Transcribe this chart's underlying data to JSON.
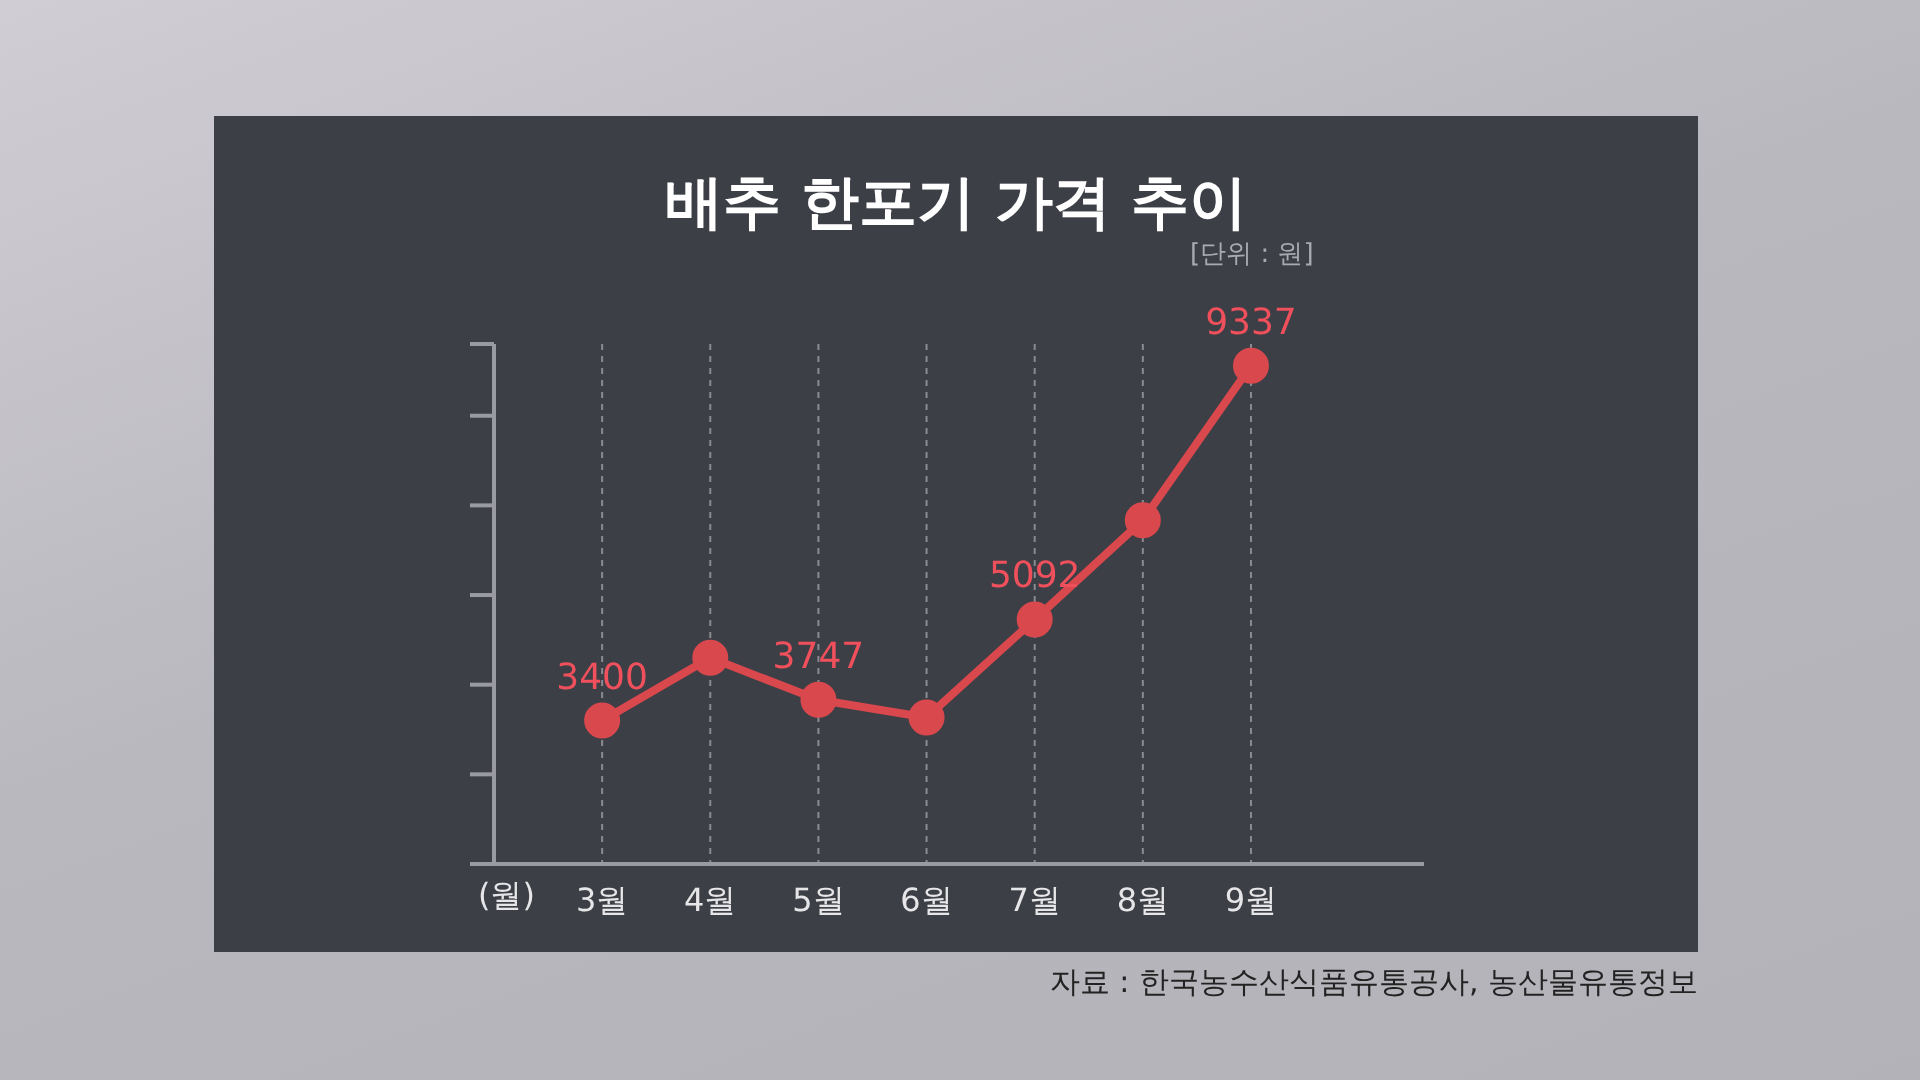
{
  "chart_data": {
    "type": "line",
    "title": "배추 한포기 가격 추이",
    "subtitle": "[단위 : 원]",
    "xlabel": "(월)",
    "categories": [
      "3월",
      "4월",
      "5월",
      "6월",
      "7월",
      "8월",
      "9월"
    ],
    "series": [
      {
        "color": "#d9484d",
        "values": [
          3400,
          4450,
          3747,
          3450,
          5092,
          6750,
          9337
        ],
        "value_labels": [
          "3400",
          null,
          "3747",
          null,
          "5092",
          null,
          "9337"
        ]
      }
    ],
    "ylim": [
      1000,
      9700
    ],
    "grid": "x",
    "marker": "circle",
    "line_style": "solid",
    "annotations": [
      "자료 : 한국농수산식품유통공사, 농산물유통정보"
    ]
  }
}
